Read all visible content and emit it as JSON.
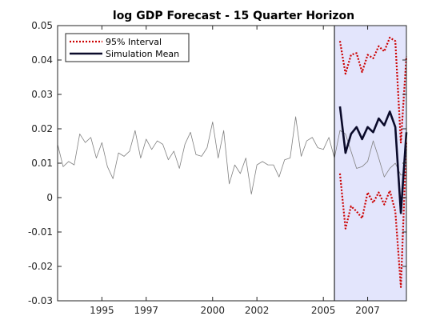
{
  "chart_data": {
    "type": "line",
    "title": "log GDP Forecast - 15 Quarter Horizon",
    "xlabel": "",
    "ylabel": "",
    "xlim": [
      1993.0,
      2008.75
    ],
    "ylim": [
      -0.03,
      0.05
    ],
    "x_ticks": [
      1995,
      1997,
      2000,
      2002,
      2005,
      2007
    ],
    "x_tick_labels": [
      "1995",
      "1997",
      "2000",
      "2002",
      "2005",
      "2007"
    ],
    "y_ticks": [
      -0.03,
      -0.02,
      -0.01,
      0,
      0.01,
      0.02,
      0.03,
      0.04,
      0.05
    ],
    "y_tick_labels": [
      "-0.03",
      "-0.02",
      "-0.01",
      "0",
      "0.01",
      "0.02",
      "0.03",
      "0.04",
      "0.05"
    ],
    "grid": false,
    "legend_position": "top-left",
    "forecast_region": {
      "x_start": 2005.5,
      "x_end": 2008.75,
      "color": "#e3e5fc"
    },
    "series": [
      {
        "key": "history",
        "color": "#808080",
        "style": "solid",
        "x": [
          1993.0,
          1993.25,
          1993.5,
          1993.75,
          1994.0,
          1994.25,
          1994.5,
          1994.75,
          1995.0,
          1995.25,
          1995.5,
          1995.75,
          1996.0,
          1996.25,
          1996.5,
          1996.75,
          1997.0,
          1997.25,
          1997.5,
          1997.75,
          1998.0,
          1998.25,
          1998.5,
          1998.75,
          1999.0,
          1999.25,
          1999.5,
          1999.75,
          2000.0,
          2000.25,
          2000.5,
          2000.75,
          2001.0,
          2001.25,
          2001.5,
          2001.75,
          2002.0,
          2002.25,
          2002.5,
          2002.75,
          2003.0,
          2003.25,
          2003.5,
          2003.75,
          2004.0,
          2004.25,
          2004.5,
          2004.75,
          2005.0,
          2005.25,
          2005.5,
          2005.75,
          2006.0,
          2006.25,
          2006.5,
          2006.75,
          2007.0,
          2007.25,
          2007.5,
          2007.75,
          2008.0,
          2008.25,
          2008.5,
          2008.75
        ],
        "values": [
          0.0155,
          0.009,
          0.0105,
          0.0095,
          0.0185,
          0.016,
          0.0175,
          0.0115,
          0.016,
          0.009,
          0.0055,
          0.013,
          0.012,
          0.0135,
          0.0195,
          0.0115,
          0.017,
          0.014,
          0.0165,
          0.0155,
          0.011,
          0.0135,
          0.0085,
          0.0155,
          0.019,
          0.0125,
          0.012,
          0.0145,
          0.022,
          0.0115,
          0.0195,
          0.004,
          0.0095,
          0.007,
          0.0115,
          0.001,
          0.0095,
          0.0105,
          0.0095,
          0.0095,
          0.006,
          0.011,
          0.0115,
          0.0235,
          0.012,
          0.0165,
          0.0175,
          0.0145,
          0.014,
          0.0175,
          0.0115,
          0.0195,
          0.0185,
          0.0135,
          0.0085,
          0.009,
          0.0105,
          0.0165,
          0.0115,
          0.006,
          0.0085,
          0.01,
          0.0065,
          0.0075
        ]
      },
      {
        "key": "upper",
        "name": "95% Interval",
        "color": "#cc0000",
        "style": "dotted",
        "x": [
          2005.75,
          2006.0,
          2006.25,
          2006.5,
          2006.75,
          2007.0,
          2007.25,
          2007.5,
          2007.75,
          2008.0,
          2008.25,
          2008.5,
          2008.75
        ],
        "values": [
          0.0455,
          0.036,
          0.0415,
          0.042,
          0.0365,
          0.0415,
          0.0405,
          0.044,
          0.0425,
          0.0465,
          0.0455,
          0.016,
          0.041
        ]
      },
      {
        "key": "lower",
        "name": "95% Interval",
        "color": "#cc0000",
        "style": "dotted",
        "x": [
          2005.75,
          2006.0,
          2006.25,
          2006.5,
          2006.75,
          2007.0,
          2007.25,
          2007.5,
          2007.75,
          2008.0,
          2008.25,
          2008.5,
          2008.75
        ],
        "values": [
          0.007,
          -0.009,
          -0.0025,
          -0.004,
          -0.006,
          0.0015,
          -0.0015,
          0.0015,
          -0.002,
          0.002,
          -0.004,
          -0.026,
          0.0165
        ]
      },
      {
        "key": "mean",
        "name": "Simulation Mean",
        "color": "#0a0a2a",
        "style": "solid",
        "x": [
          2005.75,
          2006.0,
          2006.25,
          2006.5,
          2006.75,
          2007.0,
          2007.25,
          2007.5,
          2007.75,
          2008.0,
          2008.25,
          2008.5,
          2008.75
        ],
        "values": [
          0.0265,
          0.013,
          0.0185,
          0.0205,
          0.017,
          0.0205,
          0.019,
          0.023,
          0.021,
          0.025,
          0.0205,
          -0.0045,
          0.019
        ]
      }
    ],
    "legend": [
      {
        "label": "95% Interval",
        "color": "#cc0000",
        "style": "dotted"
      },
      {
        "label": "Simulation Mean",
        "color": "#0a0a2a",
        "style": "solid"
      }
    ]
  }
}
